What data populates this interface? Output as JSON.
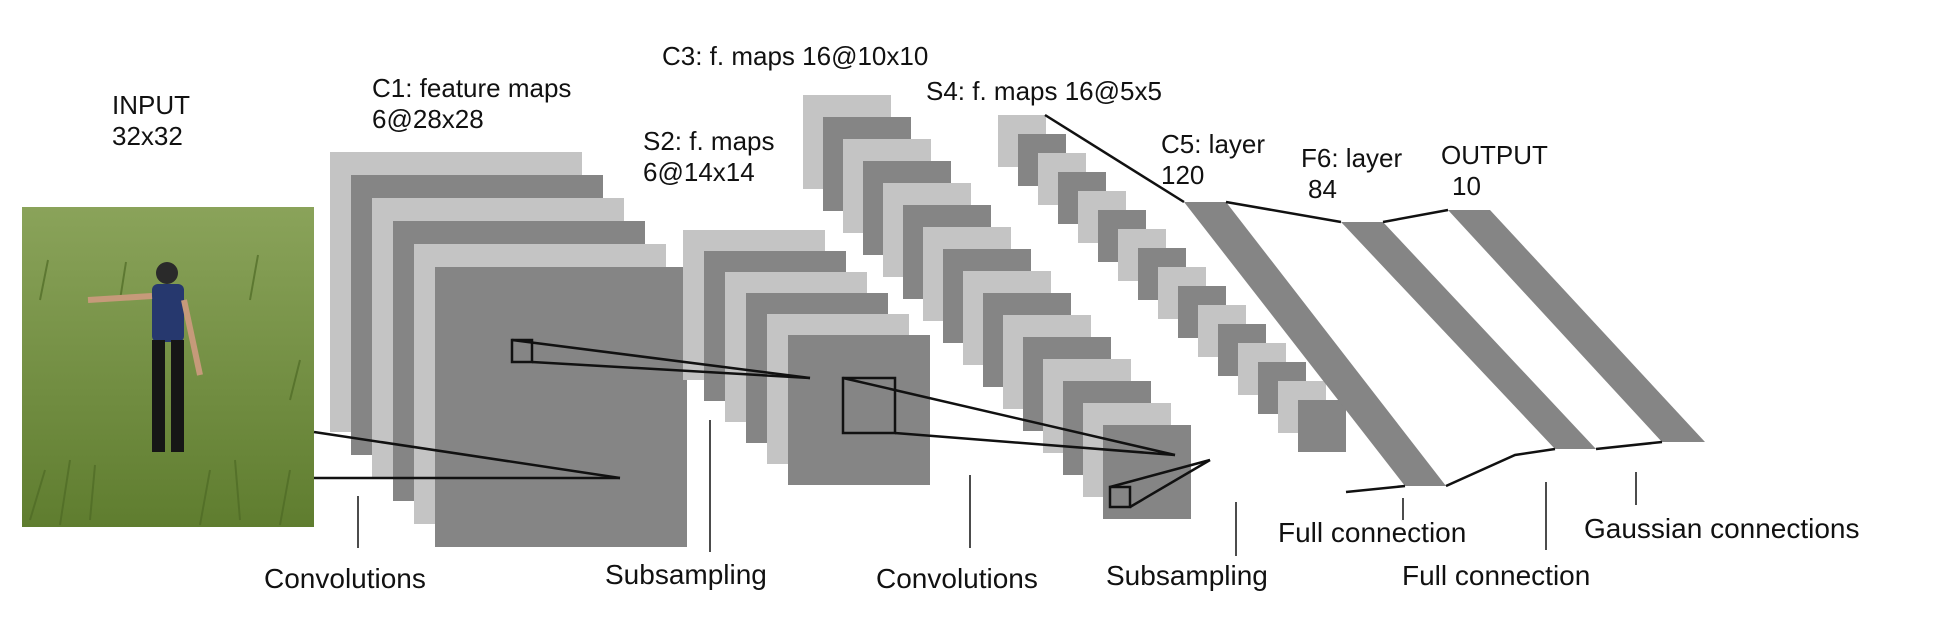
{
  "colors": {
    "light": "#c4c4c4",
    "dark": "#858585",
    "line": "#111111",
    "grass": "#6f8f3c"
  },
  "input": {
    "line1": "INPUT",
    "line2": "32x32",
    "photo_icon": "person-in-grass-photo"
  },
  "c1": {
    "line1": "C1: feature maps",
    "line2": "6@28x28"
  },
  "s2": {
    "line1": "S2: f. maps",
    "line2": "6@14x14"
  },
  "c3": {
    "line1": "C3: f. maps 16@10x10"
  },
  "s4": {
    "line1": "S4: f. maps 16@5x5"
  },
  "c5": {
    "line1": "C5: layer",
    "line2": "120"
  },
  "f6": {
    "line1": "F6: layer",
    "line2": "84"
  },
  "output": {
    "line1": "OUTPUT",
    "line2": "10"
  },
  "ops": {
    "conv1": "Convolutions",
    "sub1": "Subsampling",
    "conv2": "Convolutions",
    "sub2": "Subsampling",
    "full1": "Full connection",
    "full2": "Full connection",
    "gauss": "Gaussian connections"
  }
}
